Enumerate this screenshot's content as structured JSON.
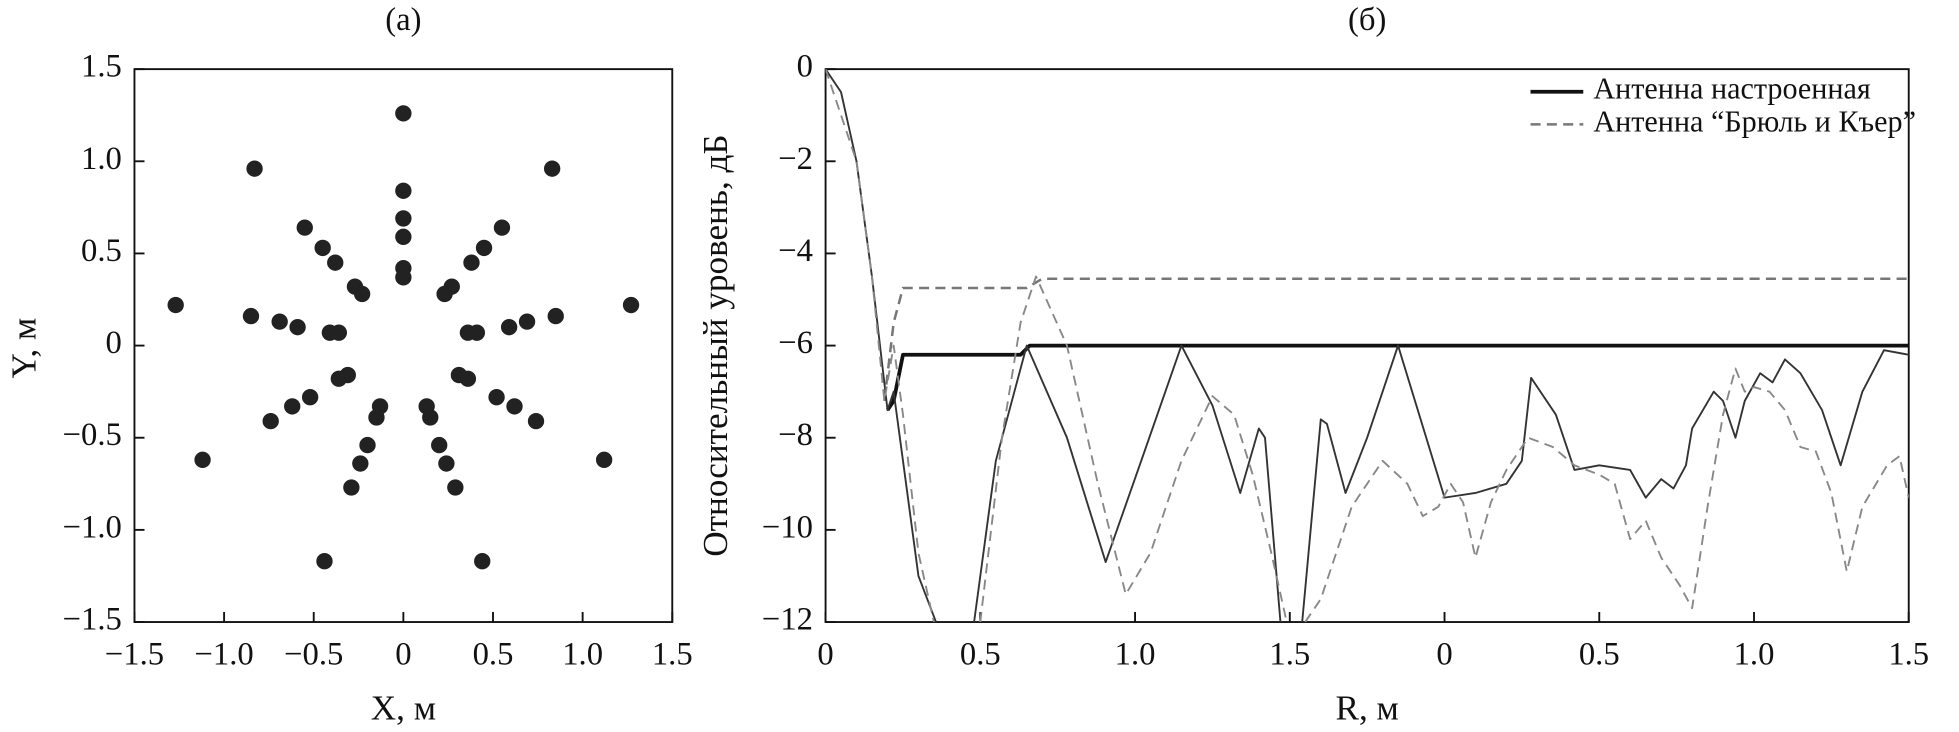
{
  "chart_data": [
    {
      "type": "scatter",
      "title": "(а)",
      "x_label": "X, м",
      "y_label": "Y, м",
      "color": "#222222",
      "xlim": [
        -1.5,
        1.5
      ],
      "ylim": [
        -1.5,
        1.5
      ],
      "xticks": [
        {
          "value": -1.5,
          "label": "−1.5"
        },
        {
          "value": -1,
          "label": "−1.0"
        },
        {
          "value": -0.5,
          "label": "−0.5"
        },
        0,
        0.5,
        {
          "value": 1,
          "label": "1.0"
        },
        1.5
      ],
      "yticks": [
        {
          "value": -1.5,
          "label": "−1.5"
        },
        {
          "value": -1,
          "label": "−1.0"
        },
        {
          "value": -0.5,
          "label": "−0.5"
        },
        0,
        0.5,
        {
          "value": 1,
          "label": "1.0"
        },
        1.5
      ],
      "x": [
        0,
        -0.83,
        0.83,
        -1.27,
        1.27,
        -1.12,
        1.12,
        -0.44,
        0.44,
        0,
        0,
        0,
        0,
        0,
        -0.55,
        -0.45,
        -0.38,
        -0.27,
        -0.23,
        0.55,
        0.45,
        0.38,
        0.27,
        0.23,
        -0.85,
        -0.69,
        -0.59,
        -0.41,
        -0.36,
        0.85,
        0.69,
        0.59,
        0.41,
        0.36,
        -0.74,
        -0.62,
        -0.52,
        -0.36,
        -0.31,
        0.74,
        0.62,
        0.52,
        0.36,
        0.31,
        -0.29,
        -0.24,
        -0.2,
        -0.15,
        -0.13,
        0.29,
        0.24,
        0.2,
        0.15,
        0.13
      ],
      "values": [
        1.26,
        0.96,
        0.96,
        0.22,
        0.22,
        -0.62,
        -0.62,
        -1.17,
        -1.17,
        0.84,
        0.69,
        0.59,
        0.42,
        0.37,
        0.64,
        0.53,
        0.45,
        0.32,
        0.28,
        0.64,
        0.53,
        0.45,
        0.32,
        0.28,
        0.16,
        0.13,
        0.1,
        0.07,
        0.07,
        0.16,
        0.13,
        0.1,
        0.07,
        0.07,
        -0.41,
        -0.33,
        -0.28,
        -0.18,
        -0.16,
        -0.41,
        -0.33,
        -0.28,
        -0.18,
        -0.16,
        -0.77,
        -0.64,
        -0.54,
        -0.39,
        -0.33,
        -0.77,
        -0.64,
        -0.54,
        -0.39,
        -0.33
      ]
    },
    {
      "type": "line",
      "title": "(б)",
      "x_label": "R, м",
      "y_label": "Относительный уровень, дБ",
      "legend": "upper right",
      "xlim": [
        0,
        3.5
      ],
      "ylim": [
        -12,
        0
      ],
      "xticks": [
        0,
        0.5,
        {
          "value": 1,
          "label": "1.0"
        },
        1.5,
        {
          "value": 2,
          "label": "0"
        },
        {
          "value": 2.5,
          "label": "0.5"
        },
        {
          "value": 3,
          "label": "1.0"
        },
        {
          "value": 3.5,
          "label": "1.5"
        }
      ],
      "yticks": [
        0,
        {
          "value": -2,
          "label": "−2"
        },
        {
          "value": -4,
          "label": "−4"
        },
        {
          "value": -6,
          "label": "−6"
        },
        {
          "value": -8,
          "label": "−8"
        },
        {
          "value": -10,
          "label": "−10"
        },
        {
          "value": -12,
          "label": "−12"
        }
      ],
      "series": [
        {
          "name": "Антенна настроенная",
          "color": "#111111",
          "dash": false,
          "width": 3,
          "x": [
            0.2,
            0.22,
            0.25,
            0.63,
            0.66,
            3.5
          ],
          "values": [
            -7.4,
            -7.2,
            -6.2,
            -6.2,
            -6.0,
            -6.0
          ]
        },
        {
          "name": "Антенна “Брюль и Къер”",
          "color": "#777777",
          "dash": true,
          "width": 2,
          "x": [
            0.19,
            0.22,
            0.25,
            0.65,
            0.7,
            3.5
          ],
          "values": [
            -7.2,
            -5.5,
            -4.75,
            -4.75,
            -4.55,
            -4.55
          ]
        },
        {
          "color": "#333333",
          "dash": false,
          "width": 1.5,
          "x": [
            0,
            0.05,
            0.1,
            0.15,
            0.2,
            0.22,
            0.25,
            0.3,
            0.357,
            0.4,
            0.48,
            0.55,
            0.65,
            0.78,
            0.905,
            1.02,
            1.15,
            1.25,
            1.34,
            1.4,
            1.42,
            1.47,
            1.5,
            1.54,
            1.6,
            1.62,
            1.68,
            1.75,
            1.85,
            2.0,
            2.1,
            2.2,
            2.25,
            2.28,
            2.36,
            2.42,
            2.5,
            2.6,
            2.65,
            2.7,
            2.74,
            2.78,
            2.8,
            2.87,
            2.9,
            2.94,
            2.97,
            3.02,
            3.06,
            3.1,
            3.15,
            3.22,
            3.28,
            3.35,
            3.42,
            3.5
          ],
          "values": [
            0,
            -0.5,
            -2.0,
            -4.5,
            -7.4,
            -7.0,
            -8.5,
            -11,
            -12,
            null,
            -12,
            -8.5,
            -6.0,
            -8.0,
            -10.7,
            -8.5,
            -6.0,
            -7.3,
            -9.2,
            -7.8,
            -8.0,
            -12,
            null,
            -12,
            -7.6,
            -7.7,
            -9.2,
            -8.0,
            -6.0,
            -9.3,
            -9.2,
            -9.0,
            -8.5,
            -6.7,
            -7.5,
            -8.7,
            -8.6,
            -8.7,
            -9.3,
            -8.9,
            -9.1,
            -8.6,
            -7.8,
            -7.0,
            -7.2,
            -8.0,
            -7.2,
            -6.6,
            -6.8,
            -6.3,
            -6.6,
            -7.4,
            -8.6,
            -7.0,
            -6.1,
            -6.2
          ]
        },
        {
          "color": "#888888",
          "dash": true,
          "width": 1.5,
          "x": [
            0,
            0.1,
            0.15,
            0.19,
            0.22,
            0.25,
            0.3,
            0.35,
            0.42,
            0.5,
            0.57,
            0.63,
            0.68,
            0.78,
            0.88,
            0.97,
            1.05,
            1.15,
            1.25,
            1.32,
            1.38,
            1.44,
            1.49,
            1.52,
            1.55,
            1.6,
            1.7,
            1.8,
            1.88,
            1.93,
            1.98,
            2.02,
            2.06,
            2.1,
            2.15,
            2.2,
            2.27,
            2.35,
            2.42,
            2.5,
            2.55,
            2.6,
            2.65,
            2.7,
            2.76,
            2.8,
            2.85,
            2.9,
            2.94,
            2.97,
            3.0,
            3.05,
            3.1,
            3.15,
            3.2,
            3.25,
            3.3,
            3.35,
            3.43,
            3.47,
            3.5
          ],
          "values": [
            0,
            -2,
            -4.5,
            -7.2,
            -6.0,
            -7.5,
            -10.5,
            -12,
            null,
            -12,
            -8,
            -5.5,
            -4.5,
            -6,
            -9,
            -11.4,
            -10.5,
            -8.5,
            -7.1,
            -7.5,
            -8.8,
            -10.5,
            -12,
            null,
            -12,
            -11.5,
            -9.5,
            -8.5,
            -9,
            -9.7,
            -9.5,
            -9.0,
            -9.4,
            -10.6,
            -9.4,
            -8.7,
            -8.0,
            -8.2,
            -8.6,
            -8.8,
            -9.0,
            -10.2,
            -9.8,
            -10.6,
            -11.2,
            -11.7,
            -9.5,
            -7.5,
            -6.5,
            -7.0,
            -6.9,
            -7.0,
            -7.4,
            -8.2,
            -8.3,
            -9.2,
            -10.9,
            -9.5,
            -8.6,
            -8.4,
            -9.3
          ]
        }
      ]
    }
  ]
}
